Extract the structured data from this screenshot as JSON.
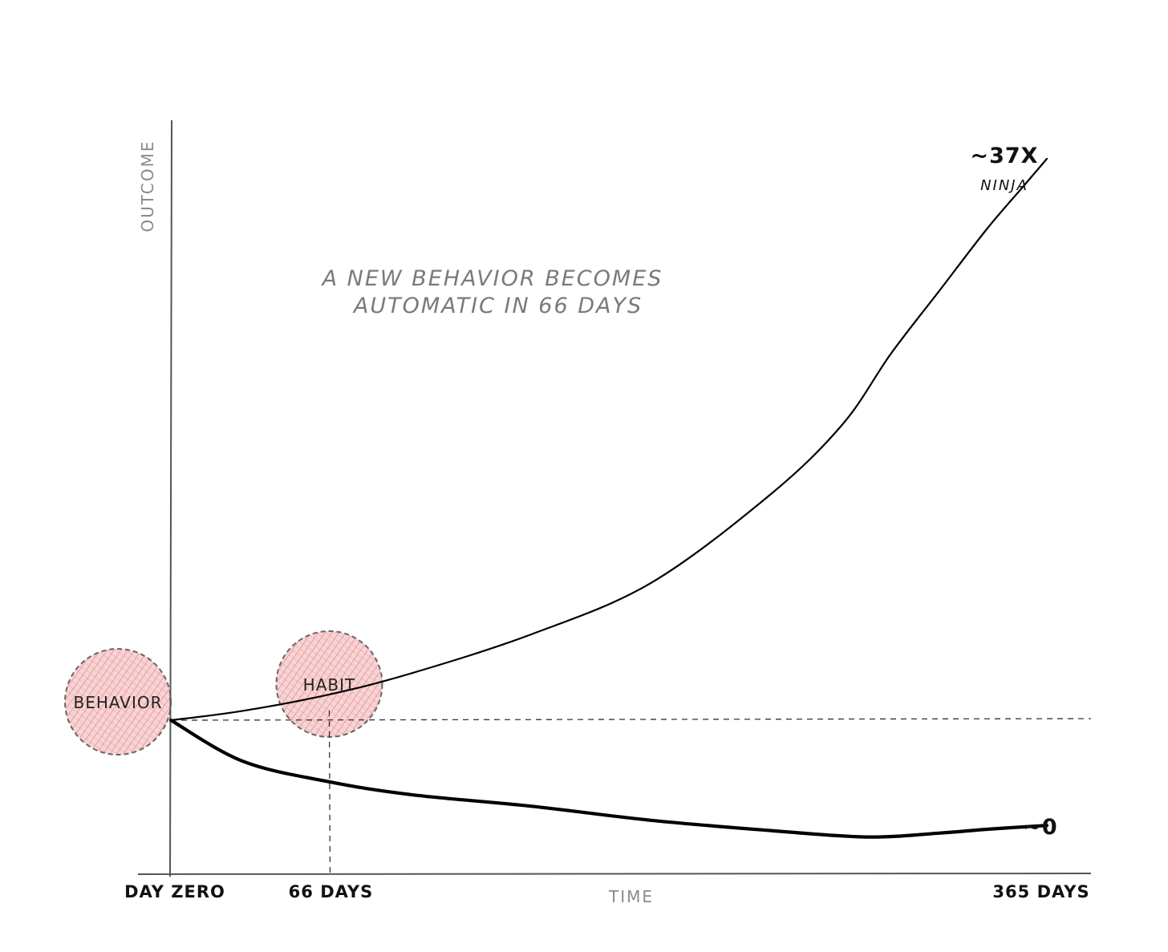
{
  "chart_data": {
    "type": "line",
    "title": "",
    "xlabel": "TIME",
    "ylabel": "OUTCOME",
    "x_ticks": [
      {
        "x": 0,
        "label": "DAY ZERO"
      },
      {
        "x": 66,
        "label": "66 DAYS"
      },
      {
        "x": 365,
        "label": "365 DAYS"
      }
    ],
    "xlim": [
      -30,
      400
    ],
    "ylim": [
      0,
      40
    ],
    "grid": false,
    "annotation": "A NEW BEHAVIOR BECOMES AUTOMATIC IN 66 DAYS",
    "annotation_lines": [
      "A NEW BEHAVIOR BECOMES",
      "AUTOMATIC IN 66 DAYS"
    ],
    "baseline": {
      "y": 1,
      "style": "dashed"
    },
    "series": [
      {
        "name": "",
        "end_label": "~37X",
        "end_sublabel": "NINJA",
        "x": [
          0,
          30,
          66,
          100,
          150,
          200,
          250,
          280,
          300,
          320,
          340,
          355,
          365
        ],
        "y": [
          1,
          1.6,
          2.65,
          4.0,
          6.5,
          9.8,
          15.5,
          20.0,
          24.5,
          28.5,
          32.5,
          35.2,
          37
        ]
      },
      {
        "name": "",
        "end_label": "~0",
        "x": [
          0,
          30,
          66,
          100,
          150,
          200,
          250,
          290,
          320,
          340,
          365
        ],
        "y": [
          1,
          0.68,
          0.52,
          0.42,
          0.33,
          0.22,
          0.14,
          0.09,
          0.12,
          0.15,
          0.18
        ]
      }
    ],
    "markers": [
      {
        "label": "BEHAVIOR",
        "x": 0,
        "y": 1
      },
      {
        "label": "HABIT",
        "x": 66,
        "y": 2.65
      }
    ],
    "guide_line": {
      "x": 66,
      "style": "dashed"
    }
  },
  "colors": {
    "line": "#000000",
    "axis": "#555555",
    "bubble_fill": "#f2b9bb",
    "bubble_hatch": "#e07a7e",
    "bubble_border": "#666666",
    "muted_text": "#7a7a7a"
  }
}
